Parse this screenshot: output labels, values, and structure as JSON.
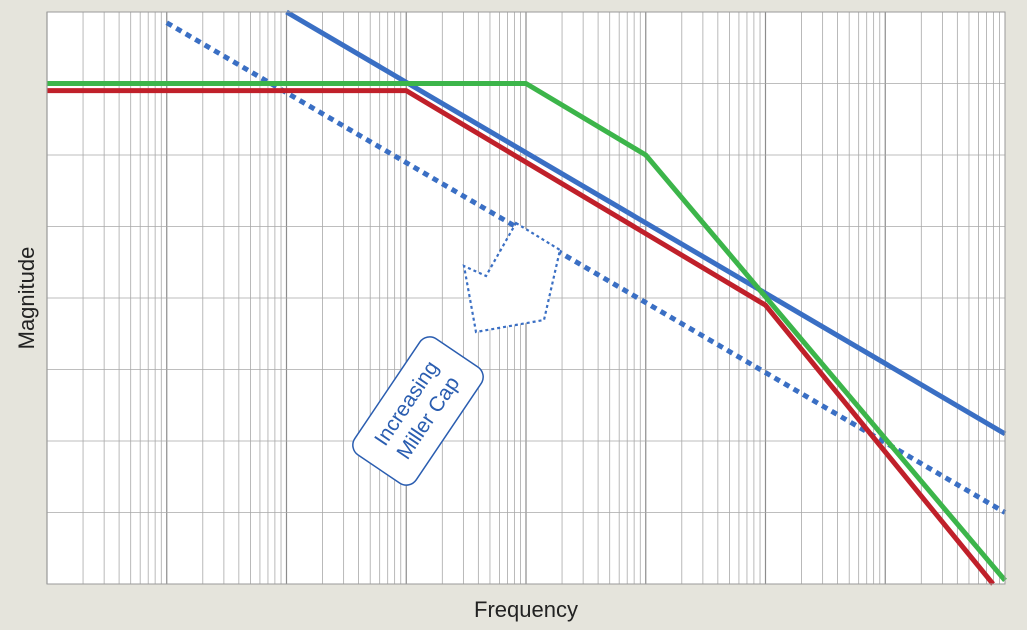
{
  "chart_data": {
    "type": "line",
    "xlabel": "Frequency",
    "ylabel": "Magnitude",
    "x_scale": "log",
    "x_decades": 8,
    "y_divisions": 8,
    "grid": true,
    "series": [
      {
        "color": "#3a6fc4",
        "style": "solid",
        "points": [
          [
            2.0,
            8.0
          ],
          [
            8.0,
            2.1
          ]
        ]
      },
      {
        "color": "#3a6fc4",
        "style": "dotted",
        "points": [
          [
            1.0,
            7.85
          ],
          [
            8.0,
            1.0
          ]
        ]
      },
      {
        "color": "#3cb54a",
        "style": "solid",
        "points": [
          [
            0.0,
            7.0
          ],
          [
            4.0,
            7.0
          ],
          [
            5.0,
            6.0
          ],
          [
            8.0,
            0.05
          ]
        ]
      },
      {
        "color": "#c0202a",
        "style": "solid",
        "points": [
          [
            0.0,
            6.9
          ],
          [
            3.0,
            6.9
          ],
          [
            6.0,
            3.9
          ],
          [
            7.9,
            0.0
          ]
        ]
      }
    ],
    "annotations": [
      {
        "text_lines": [
          "Increasing",
          "Miller Cap"
        ],
        "color": "#2a5db0"
      }
    ]
  }
}
